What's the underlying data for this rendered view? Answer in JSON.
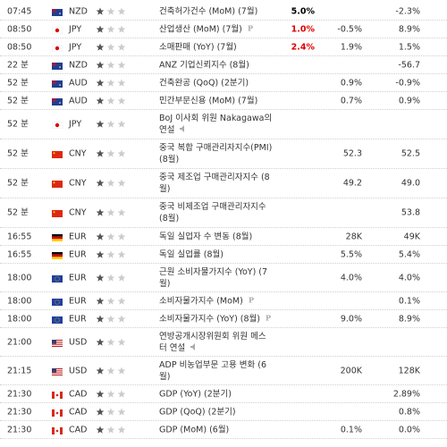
{
  "rows": [
    {
      "time": "07:45",
      "currency": "NZD",
      "importance": 1,
      "event": "건축허가건수 (MoM) (7월)",
      "actual": "5.0%",
      "actual_color": "#000000",
      "previous": "-2.3%"
    },
    {
      "time": "08:50",
      "currency": "JPY",
      "importance": 1,
      "event": "산업생산 (MoM) (7월)",
      "actual": "1.0%",
      "actual_color": "#e00000",
      "forecast": "-0.5%",
      "previous": "8.9%"
    },
    {
      "time": "08:50",
      "currency": "JPY",
      "importance": 1,
      "event": "소매판매 (YoY) (7월)",
      "actual": "2.4%",
      "actual_color": "#e00000",
      "forecast": "1.9%",
      "previous": "1.5%"
    },
    {
      "time": "22 분",
      "currency": "NZD",
      "importance": 1,
      "event": "ANZ 기업신뢰지수 (8월)",
      "previous": "-56.7"
    },
    {
      "time": "52 분",
      "currency": "AUD",
      "importance": 1,
      "event": "건축완공 (QoQ) (2분기)",
      "forecast": "0.9%",
      "previous": "-0.9%"
    },
    {
      "time": "52 분",
      "currency": "AUD",
      "importance": 1,
      "event": "민간부문신용 (MoM) (7월)",
      "forecast": "0.7%",
      "previous": "0.9%"
    },
    {
      "time": "52 분",
      "currency": "JPY",
      "importance": 1,
      "event": "BoJ 이사회 위원 Nakagawa의 연설"
    },
    {
      "time": "52 분",
      "currency": "CNY",
      "importance": 1,
      "event": "중국 복합 구매관리자지수(PMI) (8월)",
      "forecast": "52.3",
      "previous": "52.5"
    },
    {
      "time": "52 분",
      "currency": "CNY",
      "importance": 1,
      "event": "중국 제조업 구매관리자지수 (8월)",
      "forecast": "49.2",
      "previous": "49.0"
    },
    {
      "time": "52 분",
      "currency": "CNY",
      "importance": 1,
      "event": "중국 비제조업 구매관리자지수 (8월)",
      "previous": "53.8"
    },
    {
      "time": "16:55",
      "currency": "EUR",
      "importance": 1,
      "event": "독일 실업자 수 변동 (8월)",
      "forecast": "28K",
      "previous": "49K"
    },
    {
      "time": "16:55",
      "currency": "EUR",
      "importance": 1,
      "event": "독일 실업률 (8월)",
      "forecast": "5.5%",
      "previous": "5.4%"
    },
    {
      "time": "18:00",
      "currency": "EUR",
      "importance": 1,
      "event": "근원 소비자물가지수 (YoY) (7월)",
      "forecast": "4.0%",
      "previous": "4.0%"
    },
    {
      "time": "18:00",
      "currency": "EUR",
      "importance": 1,
      "event": "소비자물가지수 (MoM)",
      "previous": "0.1%"
    },
    {
      "time": "18:00",
      "currency": "EUR",
      "importance": 1,
      "event": "소비자물가지수 (YoY) (8월)",
      "forecast": "9.0%",
      "previous": "8.9%"
    },
    {
      "time": "21:00",
      "currency": "USD",
      "importance": 1,
      "event": "연방공개시장위원회 위원 메스터 연설"
    },
    {
      "time": "21:15",
      "currency": "USD",
      "importance": 1,
      "event": "ADP 비농업부문 고용 변화 (6월)",
      "forecast": "200K",
      "previous": "128K"
    },
    {
      "time": "21:30",
      "currency": "CAD",
      "importance": 1,
      "event": "GDP (YoY) (2분기)",
      "previous": "2.89%"
    },
    {
      "time": "21:30",
      "currency": "CAD",
      "importance": 1,
      "event": "GDP (QoQ) (2분기)",
      "previous": "0.8%"
    },
    {
      "time": "21:30",
      "currency": "CAD",
      "importance": 1,
      "event": "GDP (MoM) (6월)",
      "forecast": "0.1%",
      "previous": "0.0%"
    }
  ]
}
